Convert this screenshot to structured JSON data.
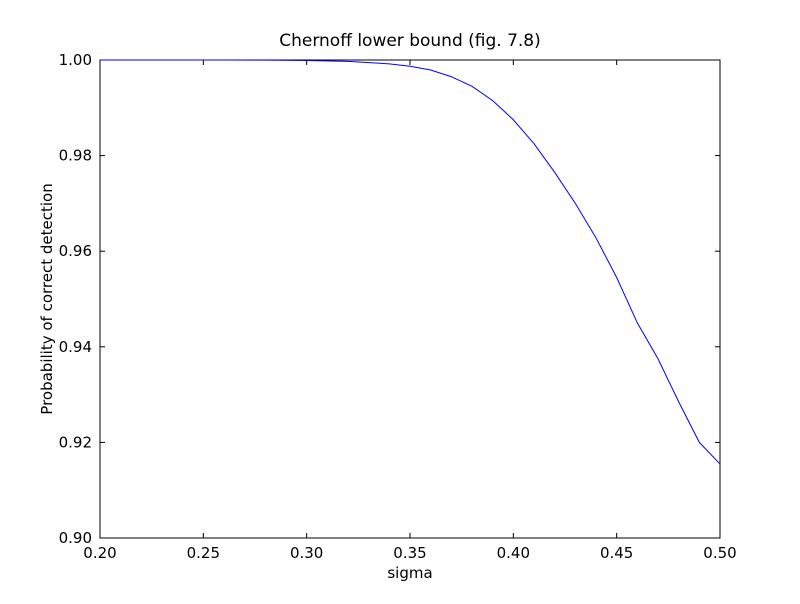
{
  "chart_data": {
    "type": "line",
    "title": "Chernoff lower bound (fig. 7.8)",
    "xlabel": "sigma",
    "ylabel": "Probability of correct detection",
    "xlim": [
      0.2,
      0.5
    ],
    "ylim": [
      0.9,
      1.0
    ],
    "xticks": [
      {
        "value": 0.2,
        "label": "0.20"
      },
      {
        "value": 0.25,
        "label": "0.25"
      },
      {
        "value": 0.3,
        "label": "0.30"
      },
      {
        "value": 0.35,
        "label": "0.35"
      },
      {
        "value": 0.4,
        "label": "0.40"
      },
      {
        "value": 0.45,
        "label": "0.45"
      },
      {
        "value": 0.5,
        "label": "0.50"
      }
    ],
    "yticks": [
      {
        "value": 0.9,
        "label": "0.90"
      },
      {
        "value": 0.92,
        "label": "0.92"
      },
      {
        "value": 0.94,
        "label": "0.94"
      },
      {
        "value": 0.96,
        "label": "0.96"
      },
      {
        "value": 0.98,
        "label": "0.98"
      },
      {
        "value": 1.0,
        "label": "1.00"
      }
    ],
    "grid": false,
    "legend": "none",
    "series": [
      {
        "color": "#0000ff",
        "x": [
          0.2,
          0.22,
          0.24,
          0.26,
          0.28,
          0.3,
          0.32,
          0.34,
          0.35,
          0.36,
          0.37,
          0.38,
          0.39,
          0.4,
          0.41,
          0.42,
          0.43,
          0.44,
          0.45,
          0.46,
          0.47,
          0.48,
          0.49,
          0.5
        ],
        "y": [
          1.0,
          1.0,
          1.0,
          0.99999,
          0.99997,
          0.9999,
          0.9997,
          0.9992,
          0.9987,
          0.9979,
          0.9965,
          0.9945,
          0.9915,
          0.9875,
          0.9825,
          0.9765,
          0.97,
          0.9628,
          0.9545,
          0.945,
          0.9375,
          0.9285,
          0.92,
          0.9155
        ]
      }
    ]
  }
}
